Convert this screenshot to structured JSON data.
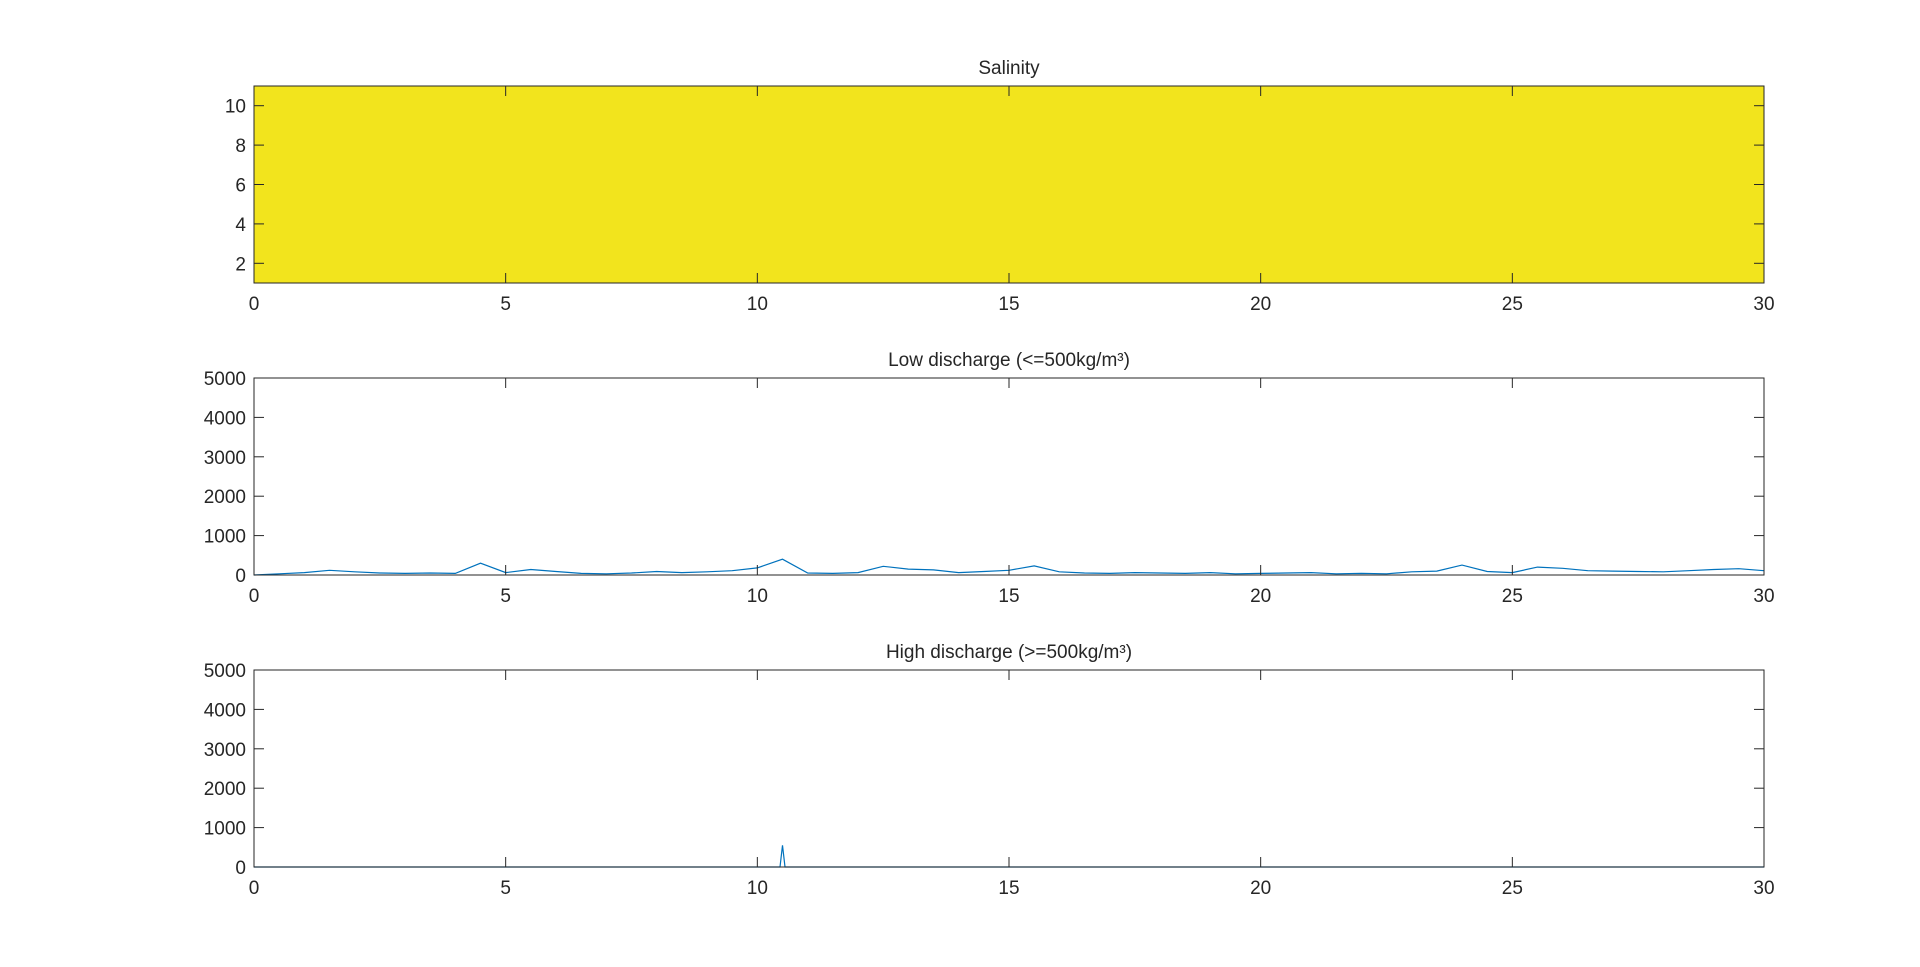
{
  "chart_data": [
    {
      "type": "image",
      "title": "Salinity",
      "color": "#f2e41d",
      "xlim": [
        0,
        30
      ],
      "xticks": [
        0,
        5,
        10,
        15,
        20,
        25,
        30
      ],
      "ylim": [
        1,
        11
      ],
      "yticks": [
        2,
        4,
        6,
        8,
        10
      ]
    },
    {
      "type": "line",
      "title": "Low discharge (<=500kg/m³)",
      "color": "#0072bd",
      "x": [
        0,
        0.5,
        1,
        1.5,
        2,
        2.5,
        3,
        3.5,
        4,
        4.5,
        5,
        5.5,
        6,
        6.5,
        7,
        7.5,
        8,
        8.5,
        9,
        9.5,
        10,
        10.5,
        11,
        11.5,
        12,
        12.5,
        13,
        13.5,
        14,
        14.5,
        15,
        15.5,
        16,
        16.5,
        17,
        17.5,
        18,
        18.5,
        19,
        19.5,
        20,
        20.5,
        21,
        21.5,
        22,
        22.5,
        23,
        23.5,
        24,
        24.5,
        25,
        25.5,
        26,
        26.5,
        27,
        27.5,
        28,
        28.5,
        29,
        29.5,
        30
      ],
      "values": [
        0,
        30,
        60,
        120,
        80,
        50,
        40,
        50,
        40,
        300,
        60,
        140,
        90,
        40,
        30,
        50,
        90,
        60,
        80,
        110,
        180,
        400,
        50,
        40,
        60,
        220,
        150,
        130,
        60,
        90,
        120,
        230,
        80,
        50,
        40,
        60,
        50,
        40,
        60,
        30,
        40,
        50,
        60,
        30,
        40,
        30,
        80,
        100,
        250,
        90,
        60,
        200,
        170,
        110,
        100,
        90,
        80,
        110,
        140,
        160,
        110
      ],
      "xlim": [
        0,
        30
      ],
      "xticks": [
        0,
        5,
        10,
        15,
        20,
        25,
        30
      ],
      "ylim": [
        0,
        5000
      ],
      "yticks": [
        0,
        1000,
        2000,
        3000,
        4000,
        5000
      ]
    },
    {
      "type": "line",
      "title": "High discharge (>=500kg/m³)",
      "color": "#0072bd",
      "x": [
        0,
        10.45,
        10.5,
        10.55,
        30
      ],
      "values": [
        0,
        0,
        550,
        0,
        0
      ],
      "xlim": [
        0,
        30
      ],
      "xticks": [
        0,
        5,
        10,
        15,
        20,
        25,
        30
      ],
      "ylim": [
        0,
        5000
      ],
      "yticks": [
        0,
        1000,
        2000,
        3000,
        4000,
        5000
      ]
    }
  ]
}
